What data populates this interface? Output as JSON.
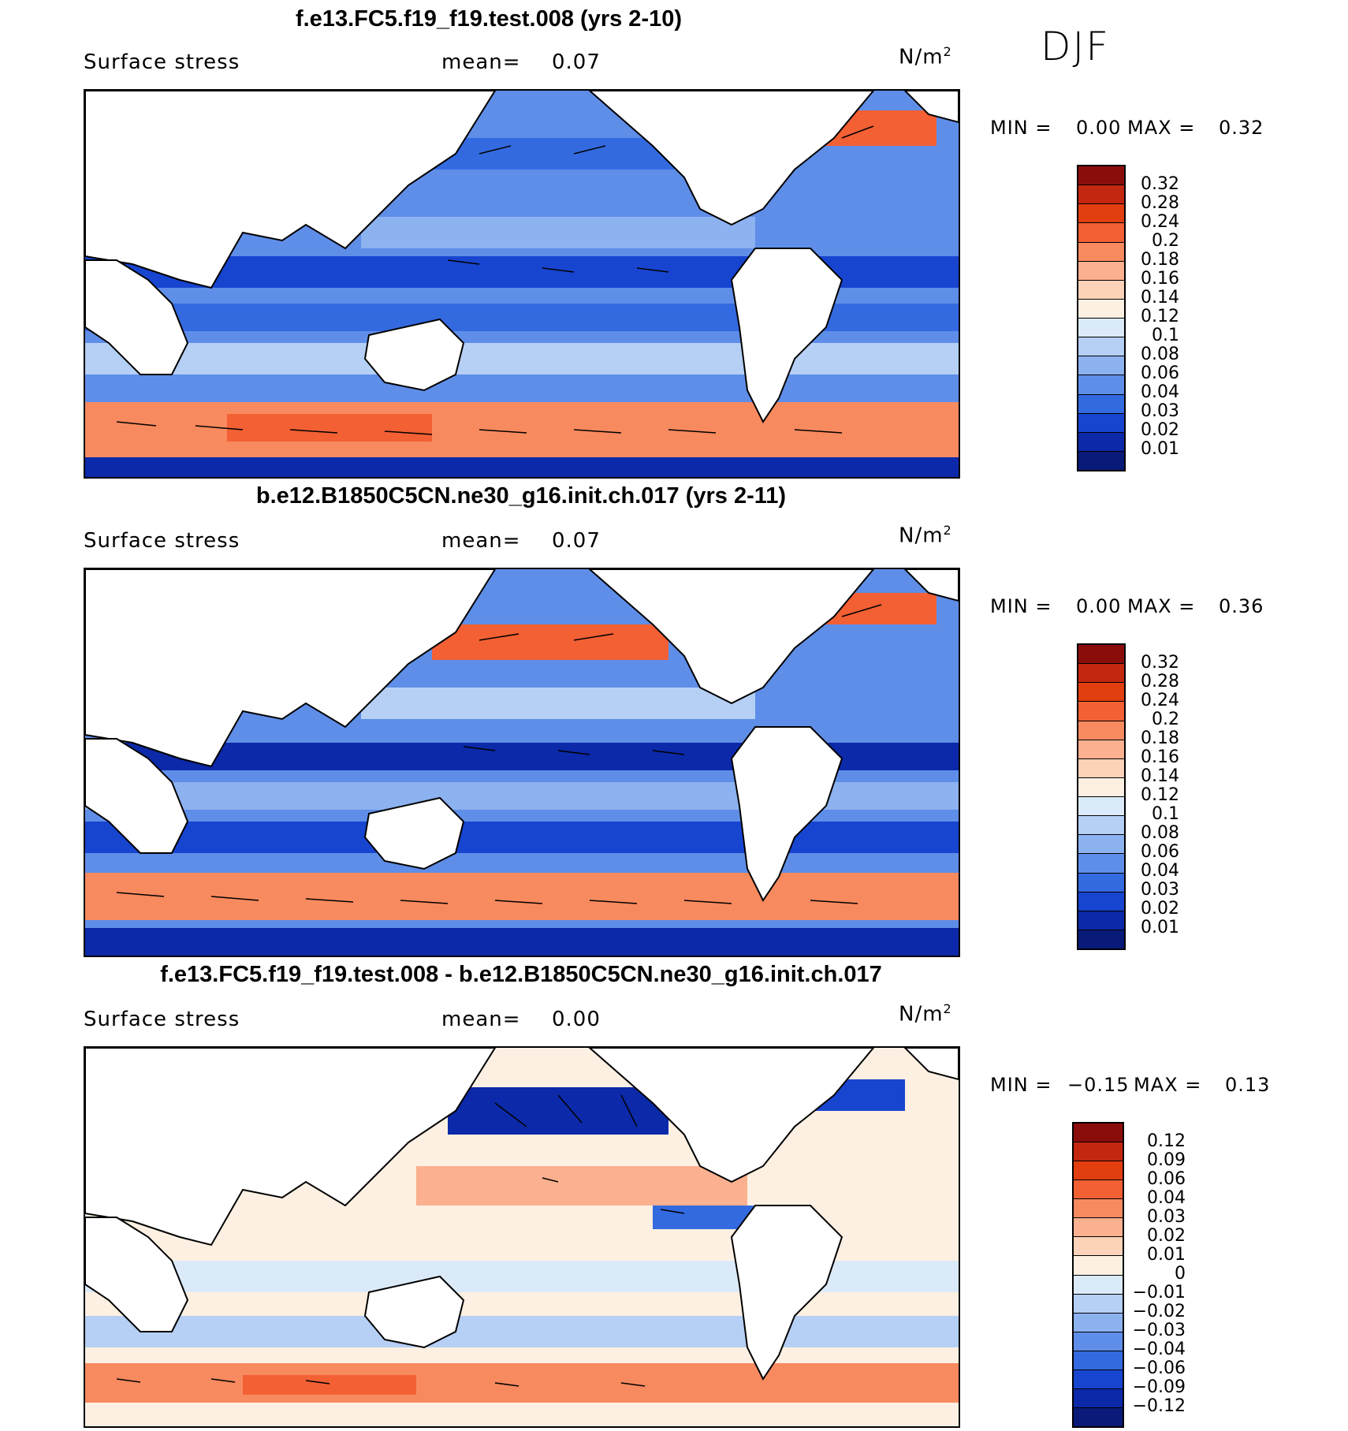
{
  "season": "DJF",
  "panels": [
    {
      "title": "f.e13.FC5.f19_f19.test.008 (yrs 2-10)",
      "variable": "Surface stress",
      "mean_label": "mean=",
      "mean_value": "0.07",
      "units": "N/m",
      "units_exp": "2",
      "min_label": "MIN =",
      "min_value": "0.00",
      "max_label": "MAX =",
      "max_value": "0.32",
      "colorbar_levels": [
        "0.32",
        "0.28",
        "0.24",
        "0.2",
        "0.18",
        "0.16",
        "0.14",
        "0.12",
        "0.1",
        "0.08",
        "0.06",
        "0.04",
        "0.03",
        "0.02",
        "0.01"
      ],
      "colorbar_colors": [
        "#8b0d0b",
        "#c3270f",
        "#e23e10",
        "#f26034",
        "#f88a5f",
        "#fbb08f",
        "#fcd2b8",
        "#fdf0e2",
        "#dbeaf9",
        "#b5cff5",
        "#8db2f0",
        "#5f8ee8",
        "#346ae0",
        "#1745d0",
        "#0b29a8",
        "#0a1a78"
      ]
    },
    {
      "title": "b.e12.B1850C5CN.ne30_g16.init.ch.017 (yrs 2-11)",
      "variable": "Surface stress",
      "mean_label": "mean=",
      "mean_value": "0.07",
      "units": "N/m",
      "units_exp": "2",
      "min_label": "MIN =",
      "min_value": "0.00",
      "max_label": "MAX =",
      "max_value": "0.36",
      "colorbar_levels": [
        "0.32",
        "0.28",
        "0.24",
        "0.2",
        "0.18",
        "0.16",
        "0.14",
        "0.12",
        "0.1",
        "0.08",
        "0.06",
        "0.04",
        "0.03",
        "0.02",
        "0.01"
      ],
      "colorbar_colors": [
        "#8b0d0b",
        "#c3270f",
        "#e23e10",
        "#f26034",
        "#f88a5f",
        "#fbb08f",
        "#fcd2b8",
        "#fdf0e2",
        "#dbeaf9",
        "#b5cff5",
        "#8db2f0",
        "#5f8ee8",
        "#346ae0",
        "#1745d0",
        "#0b29a8",
        "#0a1a78"
      ]
    },
    {
      "title": "f.e13.FC5.f19_f19.test.008 - b.e12.B1850C5CN.ne30_g16.init.ch.017",
      "variable": "Surface stress",
      "mean_label": "mean=",
      "mean_value": "0.00",
      "units": "N/m",
      "units_exp": "2",
      "min_label": "MIN =",
      "min_value": "−0.15",
      "max_label": "MAX =",
      "max_value": "0.13",
      "colorbar_levels": [
        "0.12",
        "0.09",
        "0.06",
        "0.04",
        "0.03",
        "0.02",
        "0.01",
        "0",
        "−0.01",
        "−0.02",
        "−0.03",
        "−0.04",
        "−0.06",
        "−0.09",
        "−0.12"
      ],
      "colorbar_colors": [
        "#8b0d0b",
        "#c3270f",
        "#e23e10",
        "#f26034",
        "#f88a5f",
        "#fbb08f",
        "#fcd2b8",
        "#fdf0e2",
        "#dbeaf9",
        "#b5cff5",
        "#8db2f0",
        "#5f8ee8",
        "#346ae0",
        "#1745d0",
        "#0b29a8",
        "#0a1a78"
      ]
    }
  ]
}
